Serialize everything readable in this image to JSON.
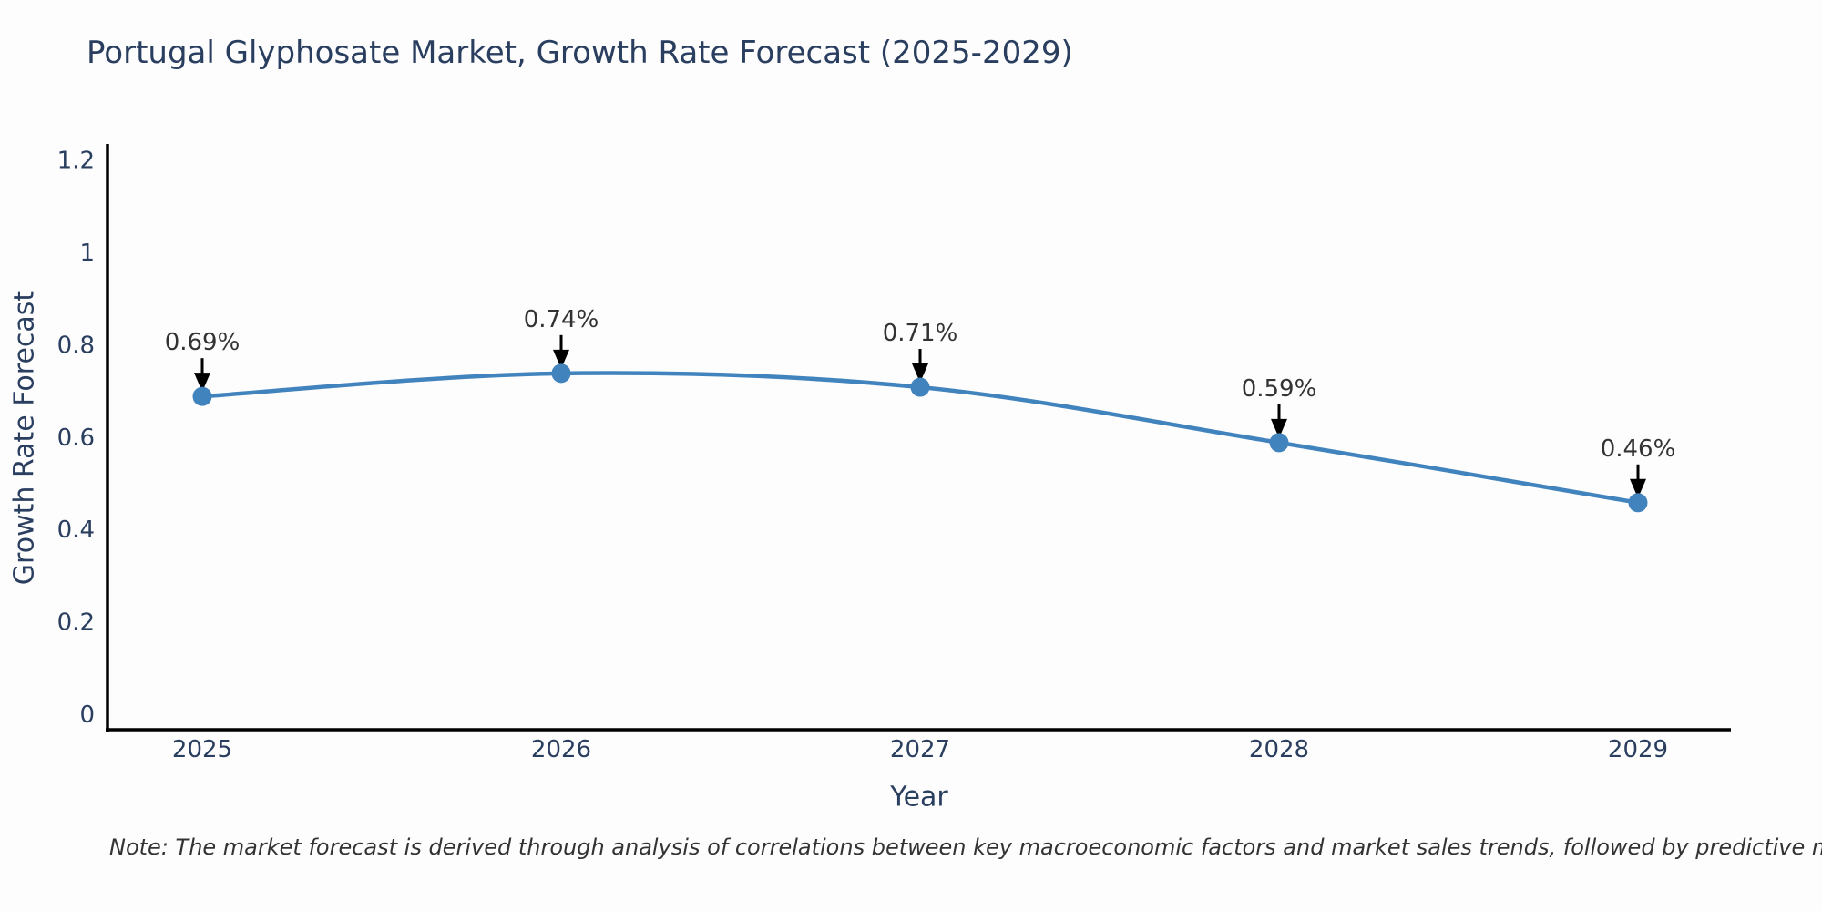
{
  "title": "Portugal Glyphosate Market, Growth Rate Forecast (2025-2029)",
  "note": "Note: The market forecast is derived through analysis of correlations between key macroeconomic factors and market sales trends, followed by predictive modeling to project future sales",
  "chart_data": {
    "type": "line",
    "title": "Portugal Glyphosate Market, Growth Rate Forecast (2025-2029)",
    "xlabel": "Year",
    "ylabel": "Growth Rate Forecast",
    "x": [
      2025,
      2026,
      2027,
      2028,
      2029
    ],
    "series": [
      {
        "name": "Growth Rate Forecast",
        "values": [
          0.69,
          0.74,
          0.71,
          0.59,
          0.46
        ]
      }
    ],
    "point_labels": [
      "0.69%",
      "0.74%",
      "0.71%",
      "0.59%",
      "0.46%"
    ],
    "yticks": [
      0,
      0.2,
      0.4,
      0.6,
      0.8,
      1,
      1.2
    ],
    "ylim": [
      0,
      1.2
    ],
    "line_shape": "spline",
    "grid": false,
    "legend": "none",
    "annotation_arrows": "down",
    "colors": {
      "line": "#4183bd",
      "marker": "#4183bd",
      "axis": "#000000",
      "tick_text": "#2a3f5f",
      "title_text": "#2a3f5f",
      "annotation_text": "#333333",
      "arrow": "#000000",
      "background": "#fdfdfe"
    }
  }
}
